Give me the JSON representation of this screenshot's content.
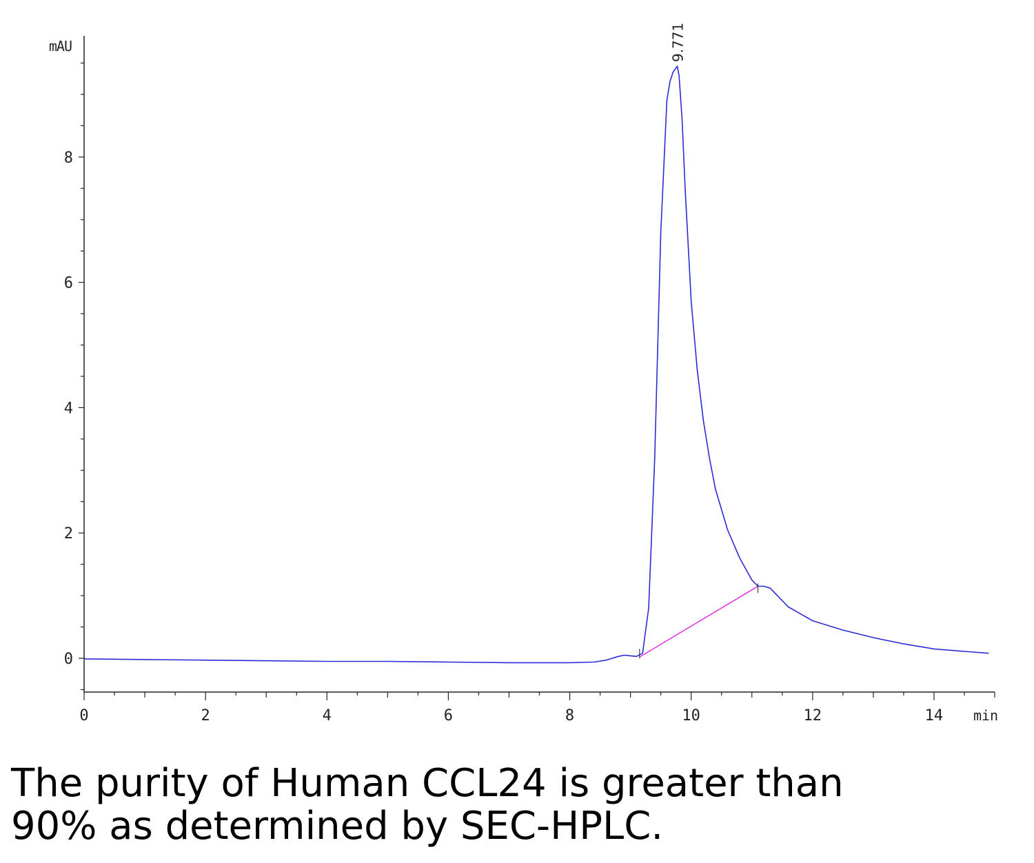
{
  "chart_data": {
    "type": "line",
    "title": "",
    "xlabel": "min",
    "ylabel": "mAU",
    "xlim": [
      0,
      15
    ],
    "ylim": [
      -0.55,
      10.0
    ],
    "x_ticks": [
      0,
      2,
      4,
      6,
      8,
      10,
      12,
      14
    ],
    "y_ticks": [
      0,
      2,
      4,
      6,
      8
    ],
    "grid": false,
    "series": [
      {
        "color": "#2a2ad6",
        "x": [
          0,
          1,
          2,
          3,
          4,
          5,
          6,
          7,
          7.5,
          8,
          8.4,
          8.6,
          8.8,
          8.9,
          9.0,
          9.1,
          9.2,
          9.3,
          9.4,
          9.5,
          9.6,
          9.65,
          9.7,
          9.75,
          9.771,
          9.8,
          9.85,
          9.9,
          10.0,
          10.1,
          10.2,
          10.3,
          10.4,
          10.6,
          10.8,
          11.0,
          11.1,
          11.2,
          11.3,
          11.4,
          11.6,
          12.0,
          12.5,
          13.0,
          13.5,
          14.0,
          14.5,
          14.9
        ],
        "y": [
          -0.01,
          -0.02,
          -0.03,
          -0.04,
          -0.05,
          -0.05,
          -0.06,
          -0.07,
          -0.07,
          -0.07,
          -0.06,
          -0.03,
          0.03,
          0.05,
          0.04,
          0.03,
          0.08,
          0.8,
          3.2,
          6.8,
          8.9,
          9.2,
          9.35,
          9.42,
          9.45,
          9.3,
          8.6,
          7.5,
          5.7,
          4.6,
          3.8,
          3.2,
          2.7,
          2.05,
          1.6,
          1.25,
          1.15,
          1.15,
          1.12,
          1.02,
          0.82,
          0.6,
          0.45,
          0.33,
          0.23,
          0.15,
          0.11,
          0.08
        ]
      },
      {
        "color": "#e020e0",
        "x": [
          9.15,
          11.1
        ],
        "y": [
          0.02,
          1.15
        ]
      }
    ],
    "annotations": [
      {
        "text": "9.771",
        "x": 9.771,
        "y": 9.45,
        "rotation": -90
      }
    ]
  },
  "caption": {
    "line1": "The purity of Human CCL24 is greater than",
    "line2": "90% as determined by SEC-HPLC."
  }
}
